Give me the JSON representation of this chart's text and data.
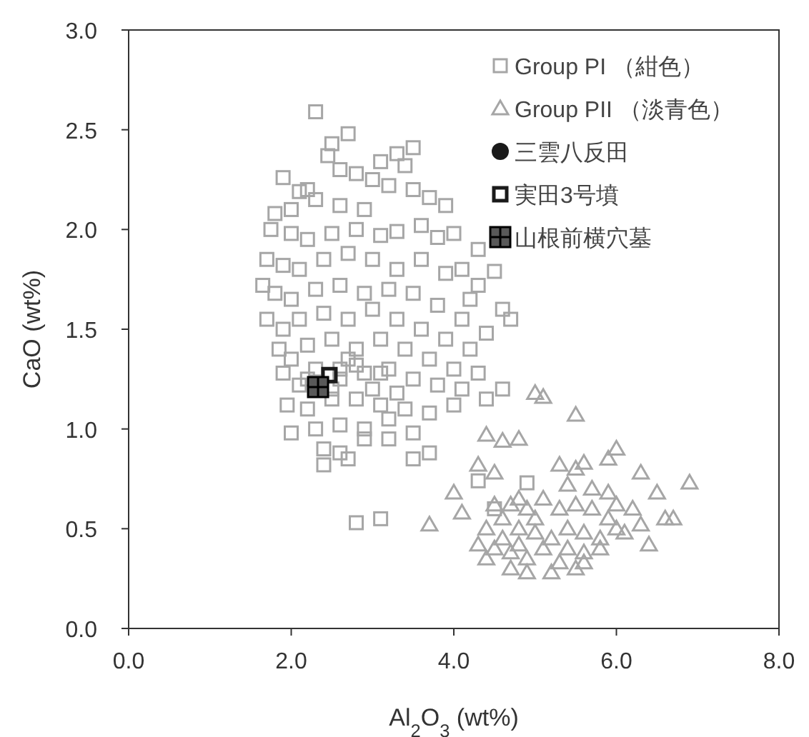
{
  "chart_data": {
    "type": "scatter",
    "xlabel": "Al$_{2}$O$_{3}$ (wt%)",
    "ylabel": "CaO (wt%)",
    "xlim": [
      0,
      8
    ],
    "ylim": [
      0,
      3
    ],
    "xticks": [
      {
        "value": 0,
        "label": "0.0"
      },
      {
        "value": 2,
        "label": "2.0"
      },
      {
        "value": 4,
        "label": "4.0"
      },
      {
        "value": 6,
        "label": "6.0"
      },
      {
        "value": 8,
        "label": "8.0"
      }
    ],
    "yticks": [
      {
        "value": 0,
        "label": "0.0"
      },
      {
        "value": 0.5,
        "label": "0.5"
      },
      {
        "value": 1,
        "label": "1.0"
      },
      {
        "value": 1.5,
        "label": "1.5"
      },
      {
        "value": 2,
        "label": "2.0"
      },
      {
        "value": 2.5,
        "label": "2.5"
      },
      {
        "value": 3,
        "label": "3.0"
      }
    ],
    "grid": false,
    "legend": "top right",
    "series": [
      {
        "name": "Group PI （紺色）",
        "color": "#a6a6a6",
        "marker": "square",
        "x": [
          2.3,
          2.5,
          2.7,
          2.45,
          3.1,
          3.3,
          3.5,
          2.6,
          2.8,
          3.0,
          3.4,
          1.9,
          2.1,
          2.2,
          3.5,
          3.2,
          1.8,
          2.0,
          2.3,
          2.6,
          2.9,
          3.7,
          3.9,
          1.75,
          2.0,
          2.2,
          2.5,
          2.8,
          3.1,
          3.3,
          3.6,
          3.8,
          4.0,
          4.3,
          4.5,
          4.6,
          4.7,
          4.3,
          4.1,
          1.7,
          1.9,
          2.1,
          2.4,
          2.7,
          3.0,
          3.3,
          3.6,
          3.9,
          4.2,
          1.65,
          1.8,
          2.0,
          2.3,
          2.6,
          2.9,
          3.2,
          3.5,
          3.8,
          4.1,
          4.4,
          1.7,
          1.9,
          2.1,
          2.4,
          2.7,
          3.0,
          3.3,
          3.6,
          3.9,
          4.2,
          1.85,
          2.0,
          2.2,
          2.5,
          2.8,
          3.1,
          3.4,
          3.7,
          4.0,
          4.3,
          1.9,
          2.1,
          2.3,
          2.6,
          2.9,
          3.2,
          3.5,
          3.8,
          4.1,
          4.4,
          4.6,
          1.95,
          2.2,
          2.5,
          2.8,
          3.1,
          3.4,
          3.7,
          4.0,
          2.0,
          2.3,
          2.6,
          2.9,
          3.2,
          3.5,
          2.4,
          2.6,
          2.7,
          2.9,
          3.2,
          3.5,
          3.7,
          2.4,
          4.5,
          4.3,
          4.9,
          3.1,
          2.8,
          2.2,
          2.5,
          2.7,
          3.0,
          2.6,
          2.8,
          3.1,
          3.3
        ],
        "values": [
          2.59,
          2.43,
          2.48,
          2.37,
          2.34,
          2.38,
          2.41,
          2.3,
          2.28,
          2.25,
          2.32,
          2.26,
          2.19,
          2.2,
          2.2,
          2.22,
          2.08,
          2.1,
          2.15,
          2.12,
          2.1,
          2.16,
          2.12,
          2.0,
          1.98,
          1.95,
          1.98,
          2.0,
          1.97,
          1.99,
          2.02,
          1.96,
          1.98,
          1.9,
          1.79,
          1.6,
          1.55,
          1.72,
          1.8,
          1.85,
          1.82,
          1.8,
          1.85,
          1.88,
          1.85,
          1.8,
          1.85,
          1.78,
          1.65,
          1.72,
          1.68,
          1.65,
          1.7,
          1.72,
          1.68,
          1.7,
          1.68,
          1.62,
          1.55,
          1.48,
          1.55,
          1.5,
          1.55,
          1.58,
          1.55,
          1.6,
          1.55,
          1.5,
          1.45,
          1.4,
          1.4,
          1.35,
          1.42,
          1.45,
          1.4,
          1.45,
          1.4,
          1.35,
          1.3,
          1.28,
          1.28,
          1.22,
          1.3,
          1.3,
          1.28,
          1.3,
          1.25,
          1.22,
          1.2,
          1.15,
          1.2,
          1.12,
          1.1,
          1.15,
          1.15,
          1.12,
          1.1,
          1.08,
          1.12,
          0.98,
          1.0,
          1.02,
          1.0,
          1.05,
          0.98,
          0.9,
          0.88,
          0.85,
          0.95,
          0.95,
          0.85,
          0.88,
          0.82,
          0.6,
          0.74,
          0.73,
          0.55,
          0.53,
          1.25,
          1.2,
          1.35,
          1.2,
          1.25,
          1.32,
          1.28,
          1.18
        ]
      },
      {
        "name": "Group PII （淡青色）",
        "color": "#a6a6a6",
        "marker": "triangle",
        "x": [
          5.1,
          5.0,
          5.5,
          4.4,
          4.6,
          4.8,
          4.3,
          4.5,
          5.3,
          5.6,
          5.9,
          6.0,
          6.3,
          6.9,
          6.5,
          6.6,
          6.3,
          6.1,
          5.4,
          5.5,
          4.0,
          4.1,
          3.7,
          4.7,
          4.9,
          4.6,
          4.8,
          5.0,
          4.4,
          4.3,
          4.5,
          4.7,
          4.9,
          5.1,
          4.6,
          4.8,
          5.0,
          5.3,
          5.5,
          5.7,
          5.9,
          5.4,
          5.6,
          5.8,
          6.0,
          5.2,
          5.4,
          5.6,
          5.8,
          5.3,
          5.5,
          5.2,
          4.7,
          4.9,
          5.7,
          5.9,
          6.0,
          6.2,
          4.5,
          4.4,
          4.8,
          5.1,
          6.7,
          6.4,
          5.6
        ],
        "values": [
          1.16,
          1.18,
          1.07,
          0.97,
          0.94,
          0.95,
          0.82,
          0.78,
          0.82,
          0.83,
          0.85,
          0.9,
          0.78,
          0.73,
          0.68,
          0.55,
          0.52,
          0.48,
          0.72,
          0.8,
          0.68,
          0.58,
          0.52,
          0.62,
          0.6,
          0.55,
          0.5,
          0.48,
          0.5,
          0.42,
          0.4,
          0.38,
          0.35,
          0.4,
          0.45,
          0.42,
          0.55,
          0.6,
          0.62,
          0.6,
          0.55,
          0.5,
          0.48,
          0.45,
          0.5,
          0.45,
          0.4,
          0.38,
          0.4,
          0.33,
          0.3,
          0.28,
          0.3,
          0.28,
          0.7,
          0.68,
          0.62,
          0.6,
          0.62,
          0.35,
          0.65,
          0.65,
          0.55,
          0.42,
          0.33
        ]
      },
      {
        "name": "三雲八反田",
        "color": "#1a1a1a",
        "marker": "circle",
        "x": [
          null
        ],
        "values": [
          null
        ]
      },
      {
        "name": "実田3号墳",
        "color": "#1a1a1a",
        "marker": "square",
        "x": [
          2.47
        ],
        "values": [
          1.27
        ]
      },
      {
        "name": "山根前横穴墓",
        "color": "#595959",
        "marker": "cross",
        "x": [
          2.33
        ],
        "values": [
          1.21
        ]
      }
    ]
  }
}
